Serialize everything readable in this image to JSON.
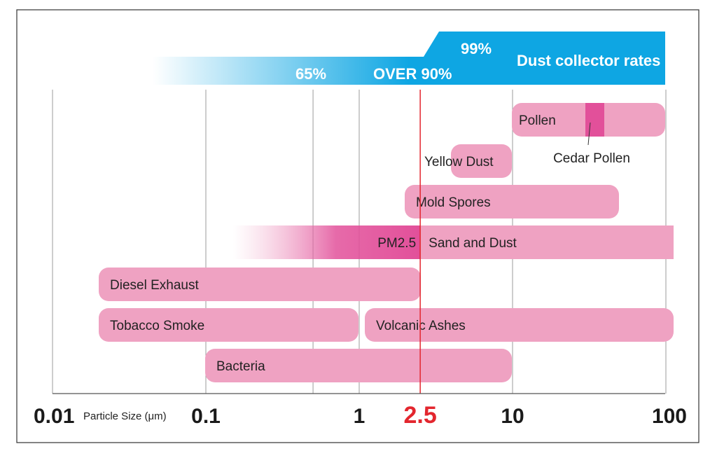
{
  "chart_data": {
    "type": "bar",
    "xlabel": "Particle Size (μm)",
    "x_scale": "log",
    "xlim": [
      0.01,
      100
    ],
    "x_ticks": [
      {
        "value": 0.01,
        "label": "0.01",
        "highlight": false
      },
      {
        "value": 0.1,
        "label": "0.1",
        "highlight": false
      },
      {
        "value": 1,
        "label": "1",
        "highlight": false
      },
      {
        "value": 2.5,
        "label": "2.5",
        "highlight": true
      },
      {
        "value": 10,
        "label": "10",
        "highlight": false
      }
    ],
    "x_tick_label_100": "100",
    "gridlines": [
      0.1,
      0.5,
      1,
      10,
      100
    ],
    "reference_line": {
      "value": 2.5,
      "color": "#e3262e"
    },
    "bars": [
      {
        "label": "Pollen",
        "start": 10,
        "end": 100
      },
      {
        "label": "Yellow Dust",
        "start": 4,
        "end": 10
      },
      {
        "label": "Mold Spores",
        "start": 2.5,
        "end": 50
      },
      {
        "label": "Sand and Dust",
        "start": 2.5,
        "end": 100
      },
      {
        "label": "Diesel Exhaust",
        "start": 0.02,
        "end": 2.5
      },
      {
        "label": "Tobacco Smoke",
        "start": 0.02,
        "end": 1
      },
      {
        "label": "Volcanic Ashes",
        "start": 1,
        "end": 100
      },
      {
        "label": "Bacteria",
        "start": 0.1,
        "end": 10
      }
    ],
    "sub_range": {
      "label": "Cedar Pollen",
      "start": 30,
      "end": 40
    },
    "gradient_range": {
      "label": "PM2.5",
      "start": 0.15,
      "end": 2.5
    },
    "collector_rates": {
      "title": "Dust collector rates",
      "rates": [
        "65%",
        "OVER 90%",
        "99%"
      ]
    },
    "colors": {
      "bar": "#efa2c2",
      "bar_strong": "#e2509a",
      "rate_band": "#0ea6e3",
      "reference": "#e3262e",
      "grid": "#9b9b9b"
    }
  }
}
